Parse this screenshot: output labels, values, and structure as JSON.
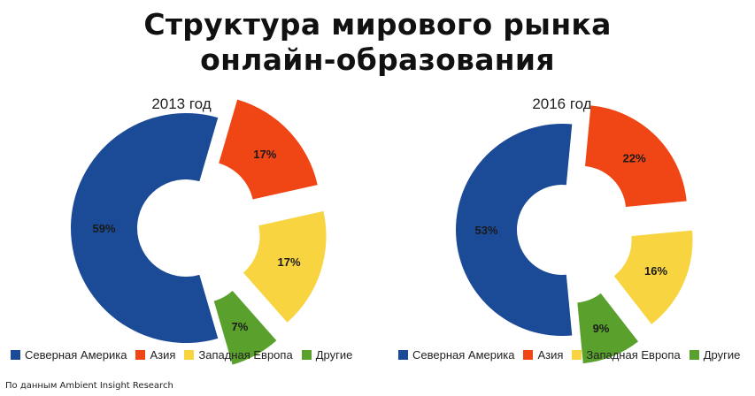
{
  "title_line1": "Структура мирового рынка",
  "title_line2": "онлайн-образования",
  "source": "По данным Ambient Insight Research",
  "categories": [
    "Северная Америка",
    "Азия",
    "Западная Европа",
    "Другие"
  ],
  "colors": {
    "north_america": "#1b4a96",
    "asia": "#f04514",
    "western_europe": "#f7d440",
    "other": "#5aa02c"
  },
  "chart_data": [
    {
      "type": "pie",
      "subtype": "exploded donut",
      "title": "2013 год",
      "slices": [
        {
          "label": "Северная Америка",
          "value": 59,
          "text": "59%"
        },
        {
          "label": "Азия",
          "value": 17,
          "text": "17%"
        },
        {
          "label": "Западная Европа",
          "value": 17,
          "text": "17%"
        },
        {
          "label": "Другие",
          "value": 7,
          "text": "7%"
        }
      ],
      "legend": [
        "Северная Америка",
        "Азия",
        "Западная Европа",
        "Другие"
      ],
      "legend_position": "bottom"
    },
    {
      "type": "pie",
      "subtype": "exploded donut",
      "title": "2016 год",
      "slices": [
        {
          "label": "Северная Америка",
          "value": 53,
          "text": "53%"
        },
        {
          "label": "Азия",
          "value": 22,
          "text": "22%"
        },
        {
          "label": "Западная Европа",
          "value": 16,
          "text": "16%"
        },
        {
          "label": "Другие",
          "value": 9,
          "text": "9%"
        }
      ],
      "legend": [
        "Северная Америка",
        "Азия",
        "Западная Европа",
        "Другие"
      ],
      "legend_position": "bottom"
    }
  ]
}
